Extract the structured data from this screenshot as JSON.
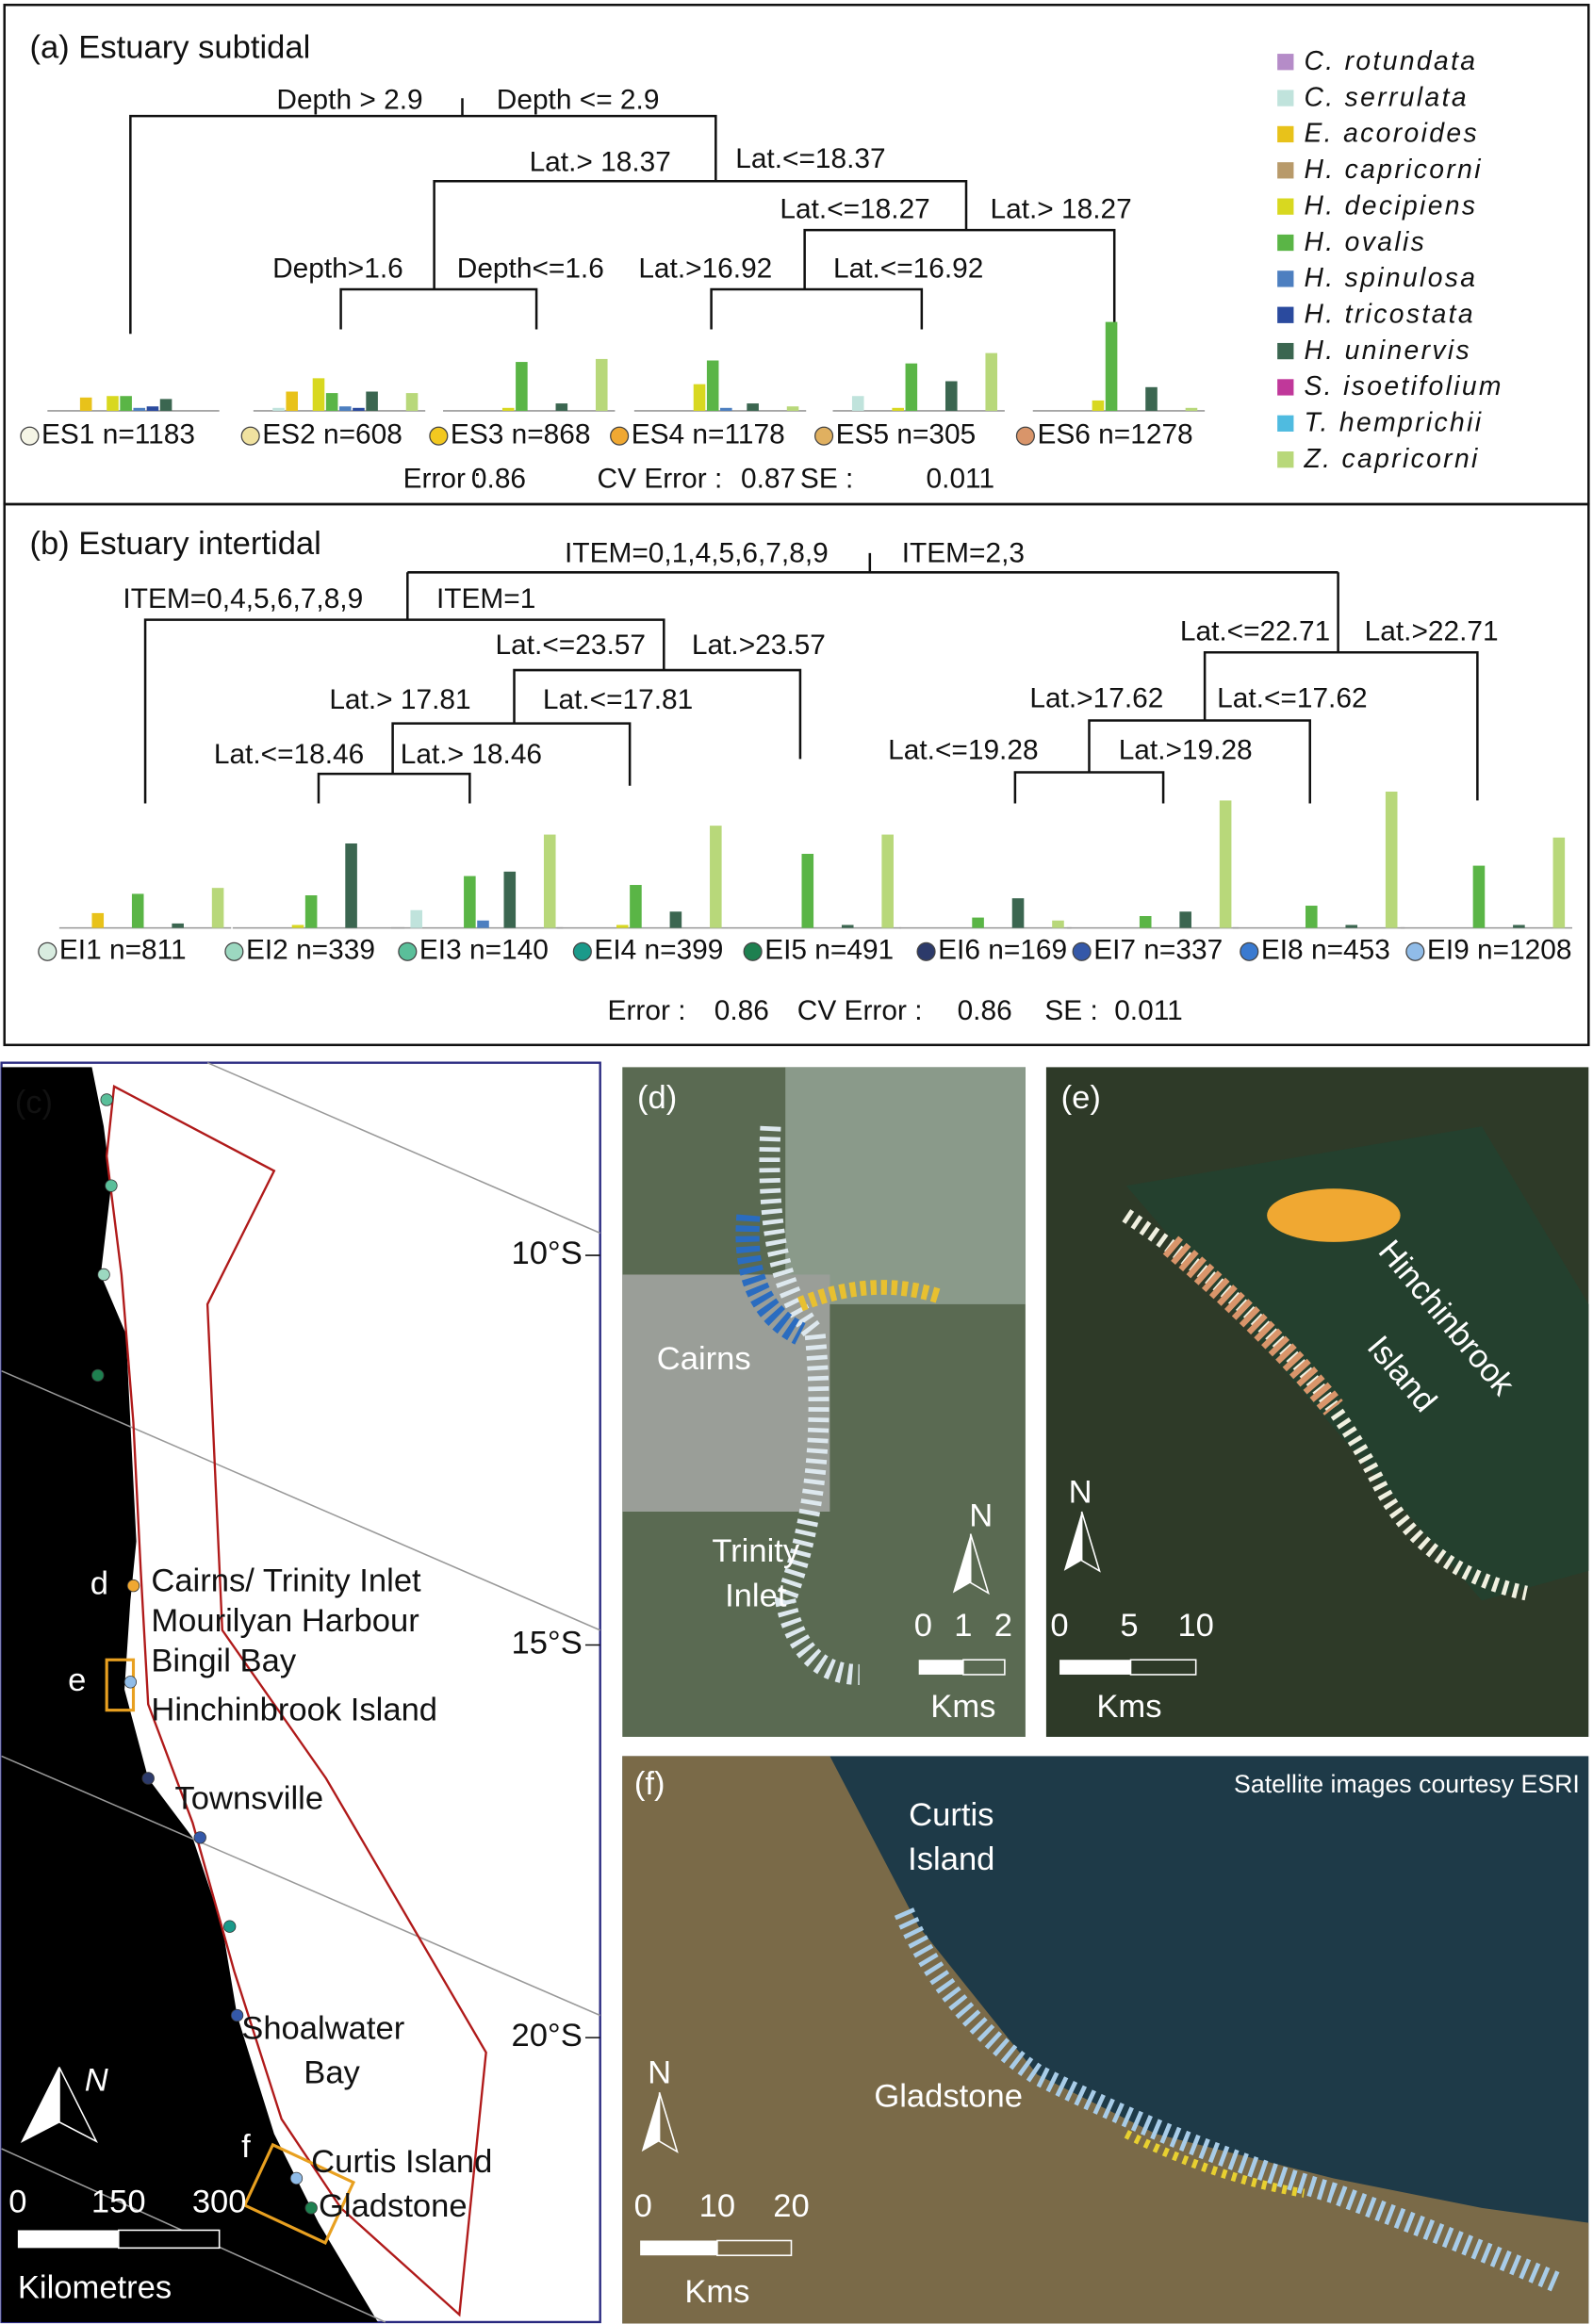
{
  "legend": [
    {
      "name": "C. rotundata",
      "color": "#b58cc8"
    },
    {
      "name": "C. serrulata",
      "color": "#c0e3dc"
    },
    {
      "name": "E. acoroides",
      "color": "#e8c21a"
    },
    {
      "name": "H. capricorni",
      "color": "#b89a6a"
    },
    {
      "name": "H. decipiens",
      "color": "#d8d820"
    },
    {
      "name": "H. ovalis",
      "color": "#5ab546"
    },
    {
      "name": "H. spinulosa",
      "color": "#4d7fc0"
    },
    {
      "name": "H. tricostata",
      "color": "#2a4a9e"
    },
    {
      "name": "H. uninervis",
      "color": "#3b6650"
    },
    {
      "name": "S. isoetifolium",
      "color": "#c0389a"
    },
    {
      "name": "T. hemprichii",
      "color": "#4fbbe0"
    },
    {
      "name": "Z. capricorni",
      "color": "#b8d87a"
    }
  ],
  "panel_a": {
    "title": "(a) Estuary subtidal",
    "splits": [
      "Depth > 2.9",
      "Depth <= 2.9",
      "Lat.> 18.37",
      "Lat.<=18.37",
      "Lat.<=18.27",
      "Lat.> 18.27",
      "Depth>1.6",
      "Depth<=1.6",
      "Lat.>16.92",
      "Lat.<=16.92"
    ],
    "leaves": [
      {
        "label": "ES1 n=1183",
        "color": "#f5f5e6",
        "values": [
          0,
          0,
          0.09,
          0,
          0.1,
          0.1,
          0.02,
          0.03,
          0.08,
          0,
          0,
          0
        ]
      },
      {
        "label": "ES2 n=608",
        "color": "#f0e2a0",
        "values": [
          0,
          0.02,
          0.13,
          0,
          0.22,
          0.12,
          0.03,
          0.02,
          0.13,
          0,
          0,
          0.12
        ]
      },
      {
        "label": "ES3 n=868",
        "color": "#f2c820",
        "values": [
          0,
          0,
          0,
          0,
          0.02,
          0.33,
          0,
          0,
          0.05,
          0,
          0,
          0.35
        ]
      },
      {
        "label": "ES4 n=1178",
        "color": "#f0a832",
        "values": [
          0,
          0,
          0,
          0,
          0.18,
          0.34,
          0.02,
          0,
          0.05,
          0,
          0,
          0.03
        ]
      },
      {
        "label": "ES5 n=305",
        "color": "#e0b060",
        "values": [
          0,
          0.1,
          0,
          0,
          0.02,
          0.32,
          0,
          0,
          0.2,
          0,
          0,
          0.39
        ]
      },
      {
        "label": "ES6 n=1278",
        "color": "#d9956a",
        "values": [
          0,
          0,
          0,
          0,
          0.07,
          0.6,
          0,
          0,
          0.16,
          0,
          0,
          0.02
        ]
      }
    ],
    "stats": [
      {
        "label": "Error :",
        "value": 0.86
      },
      {
        "label": "CV Error :",
        "value": 0.87
      },
      {
        "label": "SE :",
        "value": 0.011
      }
    ]
  },
  "panel_b": {
    "title": "(b) Estuary intertidal",
    "splits": [
      "ITEM=0,1,4,5,6,7,8,9",
      "ITEM=2,3",
      "ITEM=0,4,5,6,7,8,9",
      "ITEM=1",
      "Lat.<=23.57",
      "Lat.>23.57",
      "Lat.> 17.81",
      "Lat.<=17.81",
      "Lat.<=18.46",
      "Lat.> 18.46",
      "Lat.<=22.71",
      "Lat.>22.71",
      "Lat.>17.62",
      "Lat.<=17.62",
      "Lat.<=19.28",
      "Lat.>19.28"
    ],
    "leaves": [
      {
        "label": "EI1 n=811",
        "color": "#d8ece0",
        "values": [
          0,
          0,
          0.1,
          0,
          0,
          0.23,
          0,
          0,
          0.03,
          0,
          0,
          0.27
        ]
      },
      {
        "label": "EI2 n=339",
        "color": "#9cd8c0",
        "values": [
          0,
          0,
          0,
          0,
          0.02,
          0.22,
          0,
          0,
          0.57,
          0,
          0,
          0
        ]
      },
      {
        "label": "EI3 n=140",
        "color": "#5abf9a",
        "values": [
          0,
          0.12,
          0,
          0,
          0,
          0.35,
          0.05,
          0,
          0.38,
          0,
          0,
          0.63
        ]
      },
      {
        "label": "EI4 n=399",
        "color": "#1a9a8a",
        "values": [
          0,
          0,
          0,
          0,
          0.02,
          0.29,
          0,
          0,
          0.11,
          0,
          0,
          0.69
        ]
      },
      {
        "label": "EI5 n=491",
        "color": "#1e8050",
        "values": [
          0,
          0,
          0,
          0,
          0,
          0.5,
          0,
          0,
          0.02,
          0,
          0,
          0.63
        ]
      },
      {
        "label": "EI6 n=169",
        "color": "#2c3a6a",
        "values": [
          0,
          0,
          0,
          0,
          0,
          0.07,
          0,
          0,
          0.2,
          0,
          0,
          0.05
        ]
      },
      {
        "label": "EI7 n=337",
        "color": "#3458a8",
        "values": [
          0,
          0,
          0,
          0,
          0,
          0.08,
          0,
          0,
          0.11,
          0,
          0,
          0.86
        ]
      },
      {
        "label": "EI8 n=453",
        "color": "#3a7ad0",
        "values": [
          0,
          0,
          0,
          0,
          0,
          0.15,
          0,
          0,
          0.02,
          0,
          0,
          0.92
        ]
      },
      {
        "label": "EI9 n=1208",
        "color": "#90bce8",
        "values": [
          0,
          0,
          0,
          0,
          0,
          0.42,
          0,
          0,
          0.02,
          0,
          0,
          0.61
        ]
      }
    ],
    "stats": [
      {
        "label": "Error :",
        "value": 0.86
      },
      {
        "label": "CV Error :",
        "value": 0.86
      },
      {
        "label": "SE :",
        "value": 0.011
      }
    ]
  },
  "panel_c": {
    "label": "(c)",
    "lat_labels": [
      "10°S",
      "15°S",
      "20°S"
    ],
    "places": [
      "Cairns/ Trinity Inlet",
      "Mourilyan Harbour",
      "Bingil Bay",
      "Hinchinbrook Island",
      "Townsville",
      "Shoalwater",
      "Bay",
      "Curtis Island",
      "Gladstone"
    ],
    "insets": [
      "d",
      "e",
      "f"
    ],
    "scale": [
      0,
      150,
      300
    ],
    "unit": "Kilometres",
    "north": "N"
  },
  "panel_d": {
    "label": "(d)",
    "places": [
      "Cairns",
      "Trinity",
      "Inlet"
    ],
    "scale": [
      0,
      1,
      2
    ],
    "unit": "Kms",
    "north": "N"
  },
  "panel_e": {
    "label": "(e)",
    "places": [
      "Hinchinbrook",
      "Island"
    ],
    "scale": [
      0,
      5,
      10
    ],
    "unit": "Kms",
    "north": "N"
  },
  "panel_f": {
    "label": "(f)",
    "credit": "Satellite images courtesy ESRI",
    "places": [
      "Curtis",
      "Island",
      "Gladstone"
    ],
    "scale": [
      0,
      10,
      20
    ],
    "unit": "Kms",
    "north": "N"
  }
}
